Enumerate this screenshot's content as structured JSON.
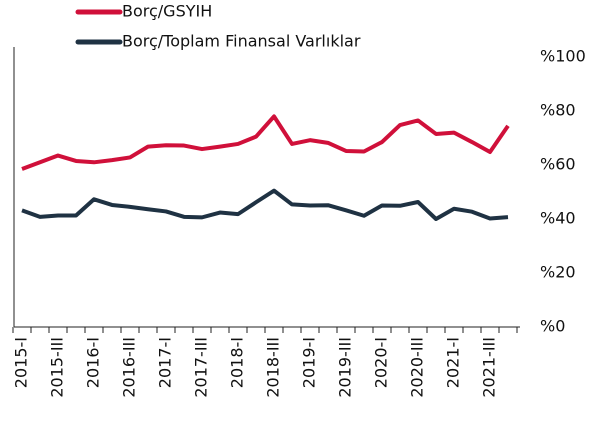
{
  "chart_data": {
    "type": "line",
    "categories": [
      "2015-I",
      null,
      "2015-III",
      null,
      "2016-I",
      null,
      "2016-III",
      null,
      "2017-I",
      null,
      "2017-III",
      null,
      "2018-I",
      null,
      "2018-III",
      null,
      "2019-I",
      null,
      "2019-III",
      null,
      "2020-I",
      null,
      "2020-III",
      null,
      "2021-I",
      null,
      "2021-III",
      null
    ],
    "series": [
      {
        "name": "Borç/GSYIH",
        "color": "#d0103a",
        "values": [
          58.5,
          61,
          63.5,
          61.5,
          61,
          61.8,
          62.8,
          66.8,
          67.3,
          67.2,
          65.9,
          66.8,
          67.8,
          70.5,
          78,
          67.8,
          69.2,
          68.2,
          65.2,
          65,
          68.5,
          74.8,
          76.5,
          71.5,
          72,
          68.5,
          64.8,
          74.5
        ]
      },
      {
        "name": "Borç/Toplam Finansal Varlıklar",
        "color": "#1f3243",
        "values": [
          43.2,
          40.8,
          41.3,
          41.3,
          47.3,
          45.2,
          44.5,
          43.6,
          42.8,
          40.8,
          40.6,
          42.4,
          41.8,
          46.2,
          50.5,
          45.4,
          45,
          45.1,
          43.2,
          41.2,
          45,
          44.9,
          46.3,
          40,
          43.8,
          42.7,
          40.2,
          40.7
        ]
      }
    ],
    "ylim": [
      0,
      100
    ],
    "yticks": [
      {
        "value": 0,
        "label": "%0"
      },
      {
        "value": 20,
        "label": "%20"
      },
      {
        "value": 40,
        "label": "%40"
      },
      {
        "value": 60,
        "label": "%60"
      },
      {
        "value": 80,
        "label": "%80"
      },
      {
        "value": 100,
        "label": "%100"
      }
    ],
    "grid": false
  }
}
